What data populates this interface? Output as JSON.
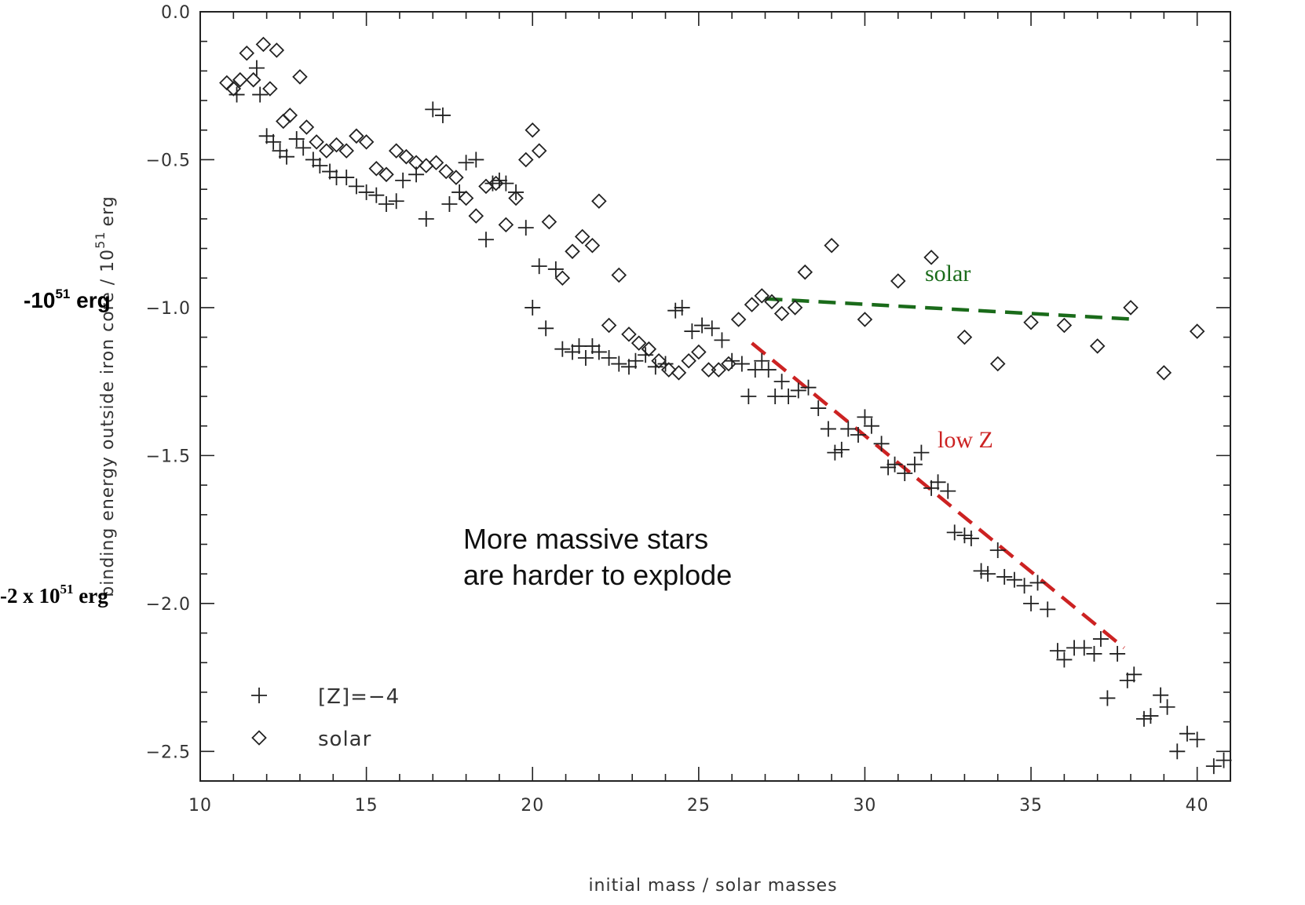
{
  "chart_data": {
    "type": "scatter",
    "xlabel": "initial mass / solar masses",
    "ylabel": "binding energy outside iron core / 10",
    "ylabel_sup": "51",
    "ylabel_unit": "erg",
    "xlim": [
      10,
      41
    ],
    "ylim": [
      -2.6,
      0.0
    ],
    "x_ticks": [
      10,
      15,
      20,
      25,
      30,
      35,
      40
    ],
    "x_tick_labels": [
      "10",
      "15",
      "20",
      "25",
      "30",
      "35",
      "40"
    ],
    "y_ticks": [
      0.0,
      -0.5,
      -1.0,
      -1.5,
      -2.0,
      -2.5
    ],
    "y_tick_labels": [
      "0.0",
      "−0.5",
      "−1.0",
      "−1.5",
      "−2.0",
      "−2.5"
    ],
    "grid": false,
    "legend_position": "bottom-left",
    "series": [
      {
        "name": "[Z]=−4",
        "marker": "plus",
        "points": [
          [
            11.1,
            -0.28
          ],
          [
            11.7,
            -0.19
          ],
          [
            11.8,
            -0.28
          ],
          [
            12.0,
            -0.42
          ],
          [
            12.2,
            -0.44
          ],
          [
            12.4,
            -0.47
          ],
          [
            12.6,
            -0.49
          ],
          [
            12.9,
            -0.43
          ],
          [
            13.1,
            -0.46
          ],
          [
            13.4,
            -0.5
          ],
          [
            13.6,
            -0.52
          ],
          [
            13.9,
            -0.54
          ],
          [
            14.1,
            -0.56
          ],
          [
            14.4,
            -0.56
          ],
          [
            14.7,
            -0.59
          ],
          [
            15.0,
            -0.61
          ],
          [
            15.3,
            -0.62
          ],
          [
            15.6,
            -0.65
          ],
          [
            15.9,
            -0.64
          ],
          [
            16.1,
            -0.57
          ],
          [
            16.5,
            -0.55
          ],
          [
            16.8,
            -0.7
          ],
          [
            17.0,
            -0.33
          ],
          [
            17.3,
            -0.35
          ],
          [
            17.5,
            -0.65
          ],
          [
            17.8,
            -0.61
          ],
          [
            18.0,
            -0.51
          ],
          [
            18.3,
            -0.5
          ],
          [
            18.6,
            -0.77
          ],
          [
            18.8,
            -0.58
          ],
          [
            19.0,
            -0.57
          ],
          [
            19.2,
            -0.58
          ],
          [
            19.5,
            -0.61
          ],
          [
            19.8,
            -0.73
          ],
          [
            20.0,
            -1.0
          ],
          [
            20.2,
            -0.86
          ],
          [
            20.4,
            -1.07
          ],
          [
            20.7,
            -0.87
          ],
          [
            20.9,
            -1.14
          ],
          [
            21.2,
            -1.15
          ],
          [
            21.4,
            -1.13
          ],
          [
            21.6,
            -1.17
          ],
          [
            21.8,
            -1.13
          ],
          [
            22.0,
            -1.15
          ],
          [
            22.3,
            -1.17
          ],
          [
            22.6,
            -1.19
          ],
          [
            22.9,
            -1.2
          ],
          [
            23.1,
            -1.18
          ],
          [
            23.4,
            -1.16
          ],
          [
            23.7,
            -1.2
          ],
          [
            24.0,
            -1.19
          ],
          [
            24.3,
            -1.01
          ],
          [
            24.5,
            -1.0
          ],
          [
            24.8,
            -1.08
          ],
          [
            25.1,
            -1.06
          ],
          [
            25.4,
            -1.07
          ],
          [
            25.7,
            -1.11
          ],
          [
            26.0,
            -1.18
          ],
          [
            26.3,
            -1.19
          ],
          [
            26.5,
            -1.3
          ],
          [
            26.7,
            -1.21
          ],
          [
            26.9,
            -1.18
          ],
          [
            27.1,
            -1.21
          ],
          [
            27.3,
            -1.3
          ],
          [
            27.5,
            -1.25
          ],
          [
            27.7,
            -1.3
          ],
          [
            28.0,
            -1.28
          ],
          [
            28.3,
            -1.27
          ],
          [
            28.6,
            -1.34
          ],
          [
            28.9,
            -1.41
          ],
          [
            29.1,
            -1.49
          ],
          [
            29.3,
            -1.48
          ],
          [
            29.5,
            -1.41
          ],
          [
            29.8,
            -1.43
          ],
          [
            30.0,
            -1.37
          ],
          [
            30.2,
            -1.4
          ],
          [
            30.5,
            -1.46
          ],
          [
            30.7,
            -1.54
          ],
          [
            30.9,
            -1.53
          ],
          [
            31.2,
            -1.56
          ],
          [
            31.5,
            -1.53
          ],
          [
            31.7,
            -1.49
          ],
          [
            32.0,
            -1.61
          ],
          [
            32.2,
            -1.59
          ],
          [
            32.5,
            -1.62
          ],
          [
            32.7,
            -1.76
          ],
          [
            33.0,
            -1.77
          ],
          [
            33.2,
            -1.78
          ],
          [
            33.5,
            -1.89
          ],
          [
            33.7,
            -1.9
          ],
          [
            34.0,
            -1.82
          ],
          [
            34.2,
            -1.91
          ],
          [
            34.5,
            -1.92
          ],
          [
            34.8,
            -1.94
          ],
          [
            35.0,
            -2.0
          ],
          [
            35.2,
            -1.93
          ],
          [
            35.5,
            -2.02
          ],
          [
            35.8,
            -2.16
          ],
          [
            36.0,
            -2.19
          ],
          [
            36.3,
            -2.15
          ],
          [
            36.6,
            -2.15
          ],
          [
            36.9,
            -2.17
          ],
          [
            37.1,
            -2.12
          ],
          [
            37.3,
            -2.32
          ],
          [
            37.6,
            -2.17
          ],
          [
            37.9,
            -2.26
          ],
          [
            38.1,
            -2.24
          ],
          [
            38.4,
            -2.39
          ],
          [
            38.6,
            -2.38
          ],
          [
            38.9,
            -2.31
          ],
          [
            39.1,
            -2.35
          ],
          [
            39.4,
            -2.5
          ],
          [
            39.7,
            -2.44
          ],
          [
            40.0,
            -2.46
          ],
          [
            40.5,
            -2.55
          ],
          [
            40.8,
            -2.53
          ]
        ]
      },
      {
        "name": "solar",
        "marker": "diamond",
        "points": [
          [
            10.8,
            -0.24
          ],
          [
            11.0,
            -0.26
          ],
          [
            11.2,
            -0.23
          ],
          [
            11.4,
            -0.14
          ],
          [
            11.6,
            -0.23
          ],
          [
            11.9,
            -0.11
          ],
          [
            12.1,
            -0.26
          ],
          [
            12.3,
            -0.13
          ],
          [
            12.5,
            -0.37
          ],
          [
            12.7,
            -0.35
          ],
          [
            13.0,
            -0.22
          ],
          [
            13.2,
            -0.39
          ],
          [
            13.5,
            -0.44
          ],
          [
            13.8,
            -0.47
          ],
          [
            14.1,
            -0.45
          ],
          [
            14.4,
            -0.47
          ],
          [
            14.7,
            -0.42
          ],
          [
            15.0,
            -0.44
          ],
          [
            15.3,
            -0.53
          ],
          [
            15.6,
            -0.55
          ],
          [
            15.9,
            -0.47
          ],
          [
            16.2,
            -0.49
          ],
          [
            16.5,
            -0.51
          ],
          [
            16.8,
            -0.52
          ],
          [
            17.1,
            -0.51
          ],
          [
            17.4,
            -0.54
          ],
          [
            17.7,
            -0.56
          ],
          [
            18.0,
            -0.63
          ],
          [
            18.3,
            -0.69
          ],
          [
            18.6,
            -0.59
          ],
          [
            18.9,
            -0.58
          ],
          [
            19.2,
            -0.72
          ],
          [
            19.5,
            -0.63
          ],
          [
            19.8,
            -0.5
          ],
          [
            20.0,
            -0.4
          ],
          [
            20.2,
            -0.47
          ],
          [
            20.5,
            -0.71
          ],
          [
            20.9,
            -0.9
          ],
          [
            21.2,
            -0.81
          ],
          [
            21.5,
            -0.76
          ],
          [
            21.8,
            -0.79
          ],
          [
            22.0,
            -0.64
          ],
          [
            22.3,
            -1.06
          ],
          [
            22.6,
            -0.89
          ],
          [
            22.9,
            -1.09
          ],
          [
            23.2,
            -1.12
          ],
          [
            23.5,
            -1.14
          ],
          [
            23.8,
            -1.18
          ],
          [
            24.1,
            -1.21
          ],
          [
            24.4,
            -1.22
          ],
          [
            24.7,
            -1.18
          ],
          [
            25.0,
            -1.15
          ],
          [
            25.3,
            -1.21
          ],
          [
            25.6,
            -1.21
          ],
          [
            25.9,
            -1.19
          ],
          [
            26.2,
            -1.04
          ],
          [
            26.6,
            -0.99
          ],
          [
            26.9,
            -0.96
          ],
          [
            27.2,
            -0.98
          ],
          [
            27.5,
            -1.02
          ],
          [
            27.9,
            -1.0
          ],
          [
            28.2,
            -0.88
          ],
          [
            29.0,
            -0.79
          ],
          [
            30.0,
            -1.04
          ],
          [
            31.0,
            -0.91
          ],
          [
            32.0,
            -0.83
          ],
          [
            33.0,
            -1.1
          ],
          [
            34.0,
            -1.19
          ],
          [
            35.0,
            -1.05
          ],
          [
            36.0,
            -1.06
          ],
          [
            37.0,
            -1.13
          ],
          [
            38.0,
            -1.0
          ],
          [
            39.0,
            -1.22
          ],
          [
            40.0,
            -1.08
          ]
        ]
      }
    ]
  },
  "annotations": {
    "line1": "More massive stars",
    "line2": "are harder to explode",
    "solar": "solar",
    "low_z": "low Z",
    "solar_color": "#1a6b1a",
    "low_z_color": "#cc2222",
    "label_1e51_base": "-10",
    "label_1e51_sup": "51",
    "label_1e51_unit": " erg",
    "label_2e51_base": "-2 x 10",
    "label_2e51_sup": "51",
    "label_2e51_unit": " erg"
  },
  "trend_lines": {
    "solar": {
      "from": [
        27.0,
        -0.97
      ],
      "to": [
        38.2,
        -1.04
      ]
    },
    "low_z": {
      "from": [
        26.6,
        -1.12
      ],
      "to": [
        37.8,
        -2.15
      ]
    }
  },
  "legend": {
    "plus_label": "[Z]=−4",
    "diamond_label": "solar"
  }
}
